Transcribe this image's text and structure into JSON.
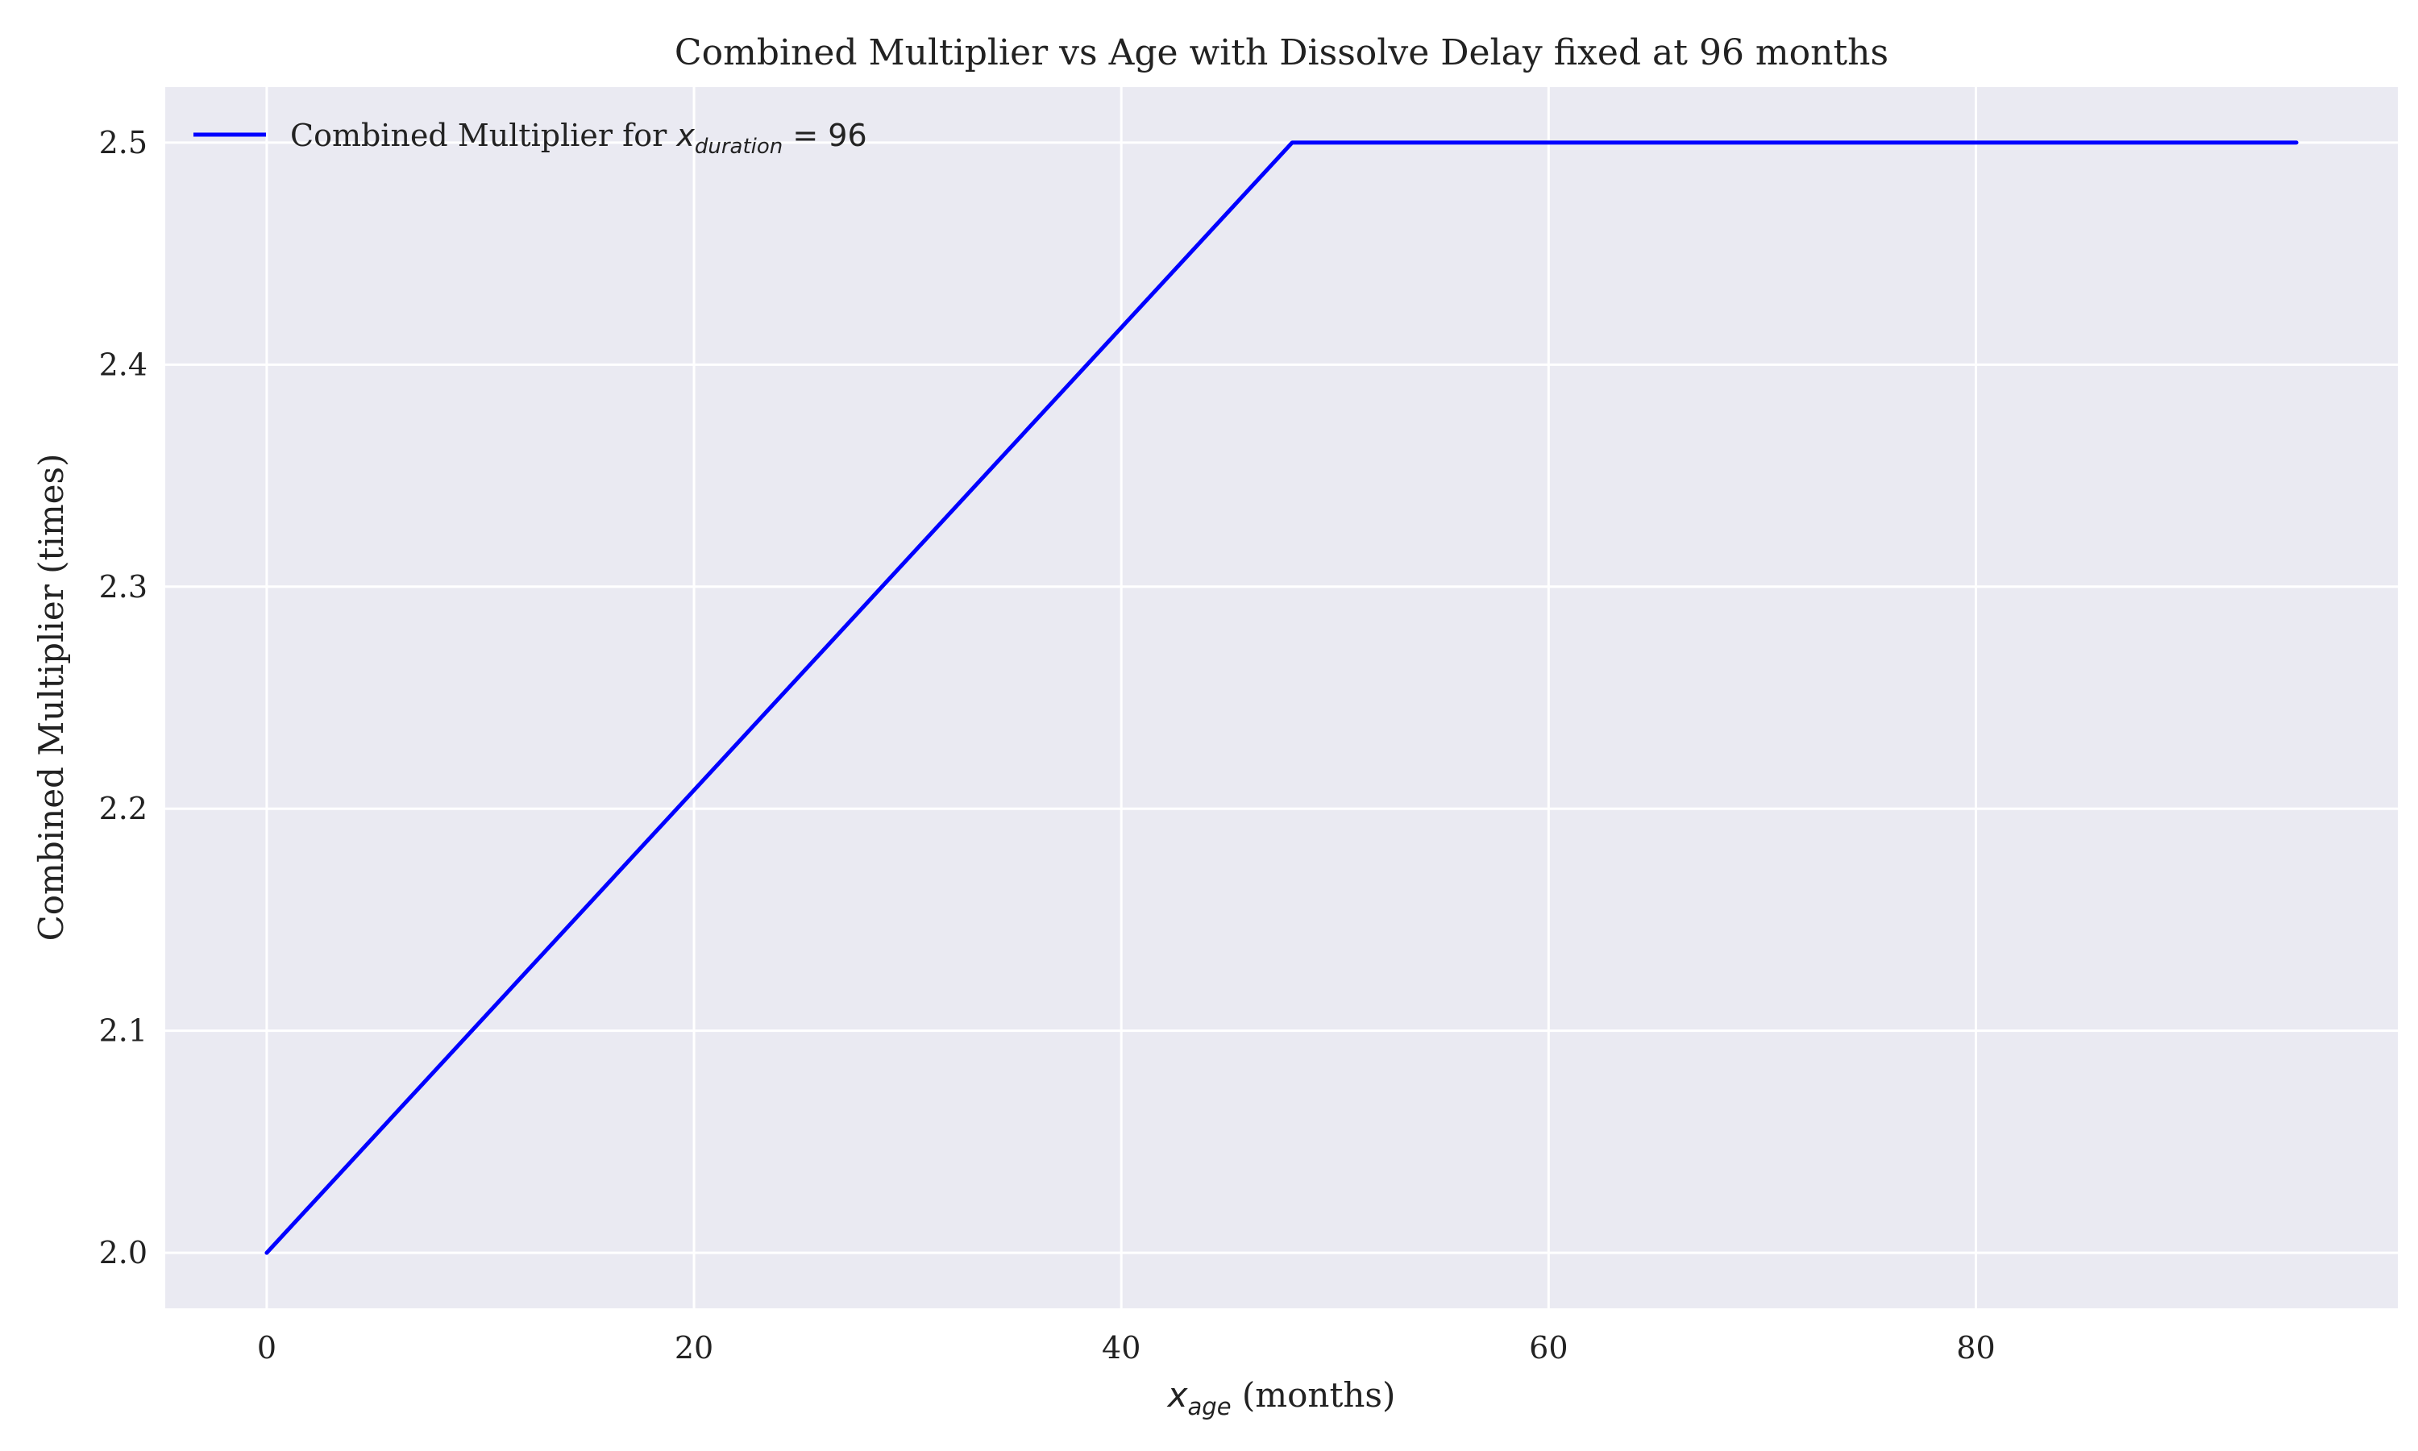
{
  "chart_data": {
    "type": "line",
    "title": "Combined Multiplier vs Age with Dissolve Delay fixed at 96 months",
    "xlabel": {
      "var": "x",
      "sub": "age",
      "unit": " (months)"
    },
    "ylabel": "Combined Multiplier (times)",
    "xlim": [
      -4.75,
      99.75
    ],
    "ylim": [
      1.975,
      2.525
    ],
    "xticks": [
      0,
      20,
      40,
      60,
      80
    ],
    "xtick_labels": [
      "0",
      "20",
      "40",
      "60",
      "80"
    ],
    "yticks": [
      2.0,
      2.1,
      2.2,
      2.3,
      2.4,
      2.5
    ],
    "ytick_labels": [
      "2.0",
      "2.1",
      "2.2",
      "2.3",
      "2.4",
      "2.5"
    ],
    "grid": true,
    "legend_position": "upper-left",
    "series": [
      {
        "name": "Combined Multiplier for x_duration = 96",
        "legend": {
          "prefix": "Combined Multiplier for ",
          "var": "x",
          "sub": "duration",
          "suffix": " = 96"
        },
        "color": "#0000ff",
        "x": [
          0,
          48,
          95
        ],
        "y": [
          2.0,
          2.5,
          2.5
        ]
      }
    ]
  },
  "colors": {
    "plot_background": "#eaeaf2",
    "grid": "#ffffff",
    "line": "#0000ff",
    "text": "#222222"
  }
}
